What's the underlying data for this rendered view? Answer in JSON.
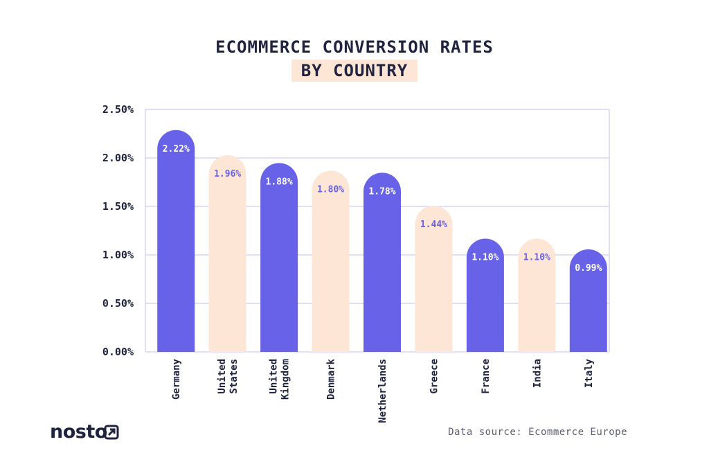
{
  "title_line1": "ECOMMERCE CONVERSION RATES",
  "title_line2": "BY COUNTRY",
  "source": "Data source: Ecommerce Europe",
  "logo": "nosto",
  "colors": {
    "accent": "#6762e8",
    "highlight": "#fde6d6",
    "grid": "#d6d4f7",
    "text": "#1f2340"
  },
  "chart_data": {
    "type": "bar",
    "title": "ECOMMERCE CONVERSION RATES BY COUNTRY",
    "categories": [
      "Germany",
      "United States",
      "United Kingdom",
      "Denmark",
      "Netherlands",
      "Greece",
      "France",
      "India",
      "Italy"
    ],
    "category_lines": [
      [
        "Germany"
      ],
      [
        "United",
        "States"
      ],
      [
        "United",
        "Kingdom"
      ],
      [
        "Denmark"
      ],
      [
        "Netherlands"
      ],
      [
        "Greece"
      ],
      [
        "France"
      ],
      [
        "India"
      ],
      [
        "Italy"
      ]
    ],
    "values": [
      2.22,
      1.96,
      1.88,
      1.8,
      1.78,
      1.44,
      1.1,
      1.1,
      0.99
    ],
    "data_labels": [
      "2.22%",
      "1.96%",
      "1.88%",
      "1.80%",
      "1.78%",
      "1.44%",
      "1.10%",
      "1.10%",
      "0.99%"
    ],
    "bar_colors": [
      "#6762e8",
      "#fde6d6",
      "#6762e8",
      "#fde6d6",
      "#6762e8",
      "#fde6d6",
      "#6762e8",
      "#fde6d6",
      "#6762e8"
    ],
    "ylim": [
      0,
      2.5
    ],
    "yticks": [
      0,
      0.5,
      1.0,
      1.5,
      2.0,
      2.5
    ],
    "ytick_labels": [
      "0.00%",
      "0.50%",
      "1.00%",
      "1.50%",
      "2.00%",
      "2.50%"
    ],
    "grid": true,
    "xlabel": "",
    "ylabel": ""
  }
}
